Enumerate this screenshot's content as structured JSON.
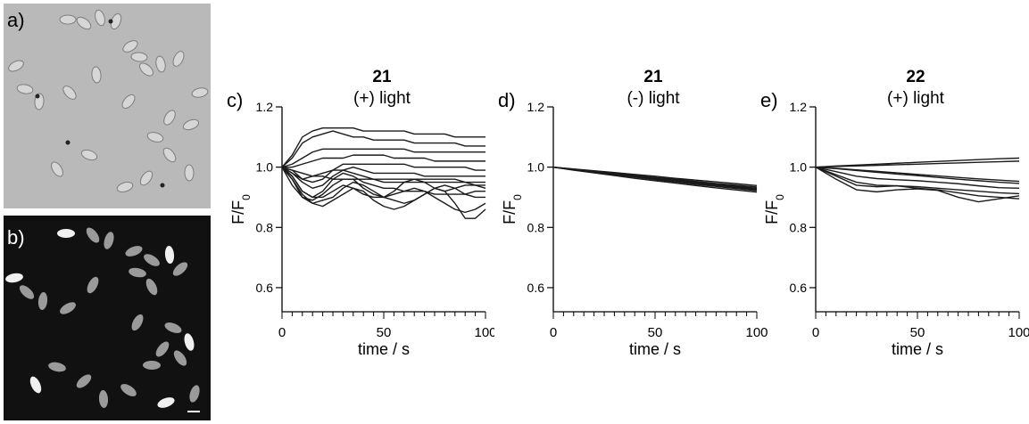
{
  "panel_labels": [
    "a)",
    "b)",
    "c)",
    "d)",
    "e)"
  ],
  "chart_data": [
    {
      "type": "line",
      "panel": "c)",
      "title": "21",
      "subtitle": "(+) light",
      "xlabel": "time / s",
      "ylabel": "F/F0",
      "ylabel_main": "F/F",
      "ylabel_sub": "0",
      "xlim": [
        0,
        100
      ],
      "ylim": [
        0.52,
        1.2
      ],
      "yticks": [
        0.6,
        0.8,
        1.0,
        1.2
      ],
      "ytick_labels": [
        "0.6",
        "0.8",
        "1.0",
        "1.2"
      ],
      "xticks": [
        0,
        50,
        100
      ],
      "xtick_labels": [
        "0",
        "50",
        "100"
      ],
      "x": [
        0,
        5,
        10,
        15,
        20,
        25,
        30,
        35,
        40,
        45,
        50,
        55,
        60,
        65,
        70,
        75,
        80,
        85,
        90,
        95,
        100
      ],
      "series": [
        {
          "values": [
            1.0,
            1.04,
            1.1,
            1.12,
            1.13,
            1.13,
            1.13,
            1.13,
            1.12,
            1.12,
            1.12,
            1.12,
            1.12,
            1.11,
            1.11,
            1.11,
            1.11,
            1.1,
            1.1,
            1.1,
            1.1
          ]
        },
        {
          "values": [
            1.0,
            1.03,
            1.08,
            1.1,
            1.11,
            1.12,
            1.11,
            1.1,
            1.1,
            1.09,
            1.09,
            1.09,
            1.09,
            1.08,
            1.08,
            1.08,
            1.08,
            1.08,
            1.07,
            1.07,
            1.07
          ]
        },
        {
          "values": [
            1.0,
            1.01,
            1.03,
            1.05,
            1.06,
            1.06,
            1.06,
            1.06,
            1.06,
            1.06,
            1.06,
            1.06,
            1.06,
            1.05,
            1.05,
            1.05,
            1.05,
            1.05,
            1.05,
            1.05,
            1.05
          ]
        },
        {
          "values": [
            1.0,
            1.0,
            1.01,
            1.02,
            1.03,
            1.03,
            1.03,
            1.04,
            1.04,
            1.04,
            1.04,
            1.03,
            1.03,
            1.03,
            1.03,
            1.02,
            1.02,
            1.02,
            1.02,
            1.02,
            1.02
          ]
        },
        {
          "values": [
            1.0,
            0.99,
            0.96,
            0.95,
            0.96,
            0.99,
            1.01,
            1.01,
            1.01,
            1.01,
            1.01,
            1.01,
            1.01,
            1.0,
            1.0,
            1.0,
            1.0,
            1.0,
            1.0,
            0.99,
            0.99
          ]
        },
        {
          "values": [
            1.0,
            0.98,
            0.95,
            0.93,
            0.94,
            0.97,
            0.99,
            1.0,
            0.99,
            0.98,
            0.98,
            0.98,
            0.98,
            0.98,
            0.97,
            0.97,
            0.97,
            0.97,
            0.97,
            0.97,
            0.97
          ]
        },
        {
          "values": [
            1.0,
            0.98,
            0.96,
            0.97,
            0.98,
            0.99,
            0.99,
            0.98,
            0.97,
            0.96,
            0.96,
            0.96,
            0.96,
            0.96,
            0.96,
            0.96,
            0.96,
            0.96,
            0.95,
            0.95,
            0.95
          ]
        },
        {
          "values": [
            1.0,
            0.99,
            0.98,
            0.97,
            0.97,
            0.96,
            0.96,
            0.96,
            0.96,
            0.96,
            0.95,
            0.95,
            0.95,
            0.95,
            0.95,
            0.95,
            0.95,
            0.95,
            0.95,
            0.94,
            0.94
          ]
        },
        {
          "values": [
            1.0,
            0.97,
            0.92,
            0.9,
            0.92,
            0.96,
            0.98,
            0.97,
            0.95,
            0.94,
            0.93,
            0.93,
            0.92,
            0.92,
            0.92,
            0.91,
            0.91,
            0.91,
            0.91,
            0.92,
            0.92
          ]
        },
        {
          "values": [
            1.0,
            0.96,
            0.9,
            0.89,
            0.91,
            0.94,
            0.96,
            0.96,
            0.93,
            0.91,
            0.9,
            0.92,
            0.95,
            0.96,
            0.95,
            0.93,
            0.92,
            0.93,
            0.94,
            0.94,
            0.93
          ]
        },
        {
          "values": [
            1.0,
            0.94,
            0.9,
            0.88,
            0.89,
            0.9,
            0.93,
            0.95,
            0.94,
            0.92,
            0.9,
            0.89,
            0.88,
            0.89,
            0.91,
            0.93,
            0.94,
            0.93,
            0.91,
            0.9,
            0.9
          ]
        },
        {
          "values": [
            1.0,
            0.96,
            0.91,
            0.88,
            0.87,
            0.89,
            0.91,
            0.93,
            0.92,
            0.89,
            0.87,
            0.86,
            0.87,
            0.89,
            0.91,
            0.93,
            0.92,
            0.88,
            0.83,
            0.83,
            0.86
          ]
        },
        {
          "values": [
            1.0,
            0.97,
            0.92,
            0.9,
            0.9,
            0.92,
            0.94,
            0.93,
            0.91,
            0.9,
            0.9,
            0.91,
            0.92,
            0.93,
            0.92,
            0.9,
            0.88,
            0.86,
            0.85,
            0.86,
            0.88
          ]
        }
      ]
    },
    {
      "type": "line",
      "panel": "d)",
      "title": "21",
      "subtitle": "(-) light",
      "xlabel": "time / s",
      "ylabel": "F/F0",
      "ylabel_main": "F/F",
      "ylabel_sub": "0",
      "xlim": [
        0,
        100
      ],
      "ylim": [
        0.52,
        1.2
      ],
      "yticks": [
        0.6,
        0.8,
        1.0,
        1.2
      ],
      "ytick_labels": [
        "0.6",
        "0.8",
        "1.0",
        "1.2"
      ],
      "xticks": [
        0,
        50,
        100
      ],
      "xtick_labels": [
        "0",
        "50",
        "100"
      ],
      "x": [
        0,
        10,
        20,
        30,
        40,
        50,
        60,
        70,
        80,
        90,
        100
      ],
      "series": [
        {
          "values": [
            1.0,
            0.993,
            0.987,
            0.98,
            0.973,
            0.966,
            0.96,
            0.953,
            0.946,
            0.94,
            0.934
          ]
        },
        {
          "values": [
            1.0,
            0.992,
            0.985,
            0.977,
            0.97,
            0.962,
            0.955,
            0.948,
            0.941,
            0.934,
            0.928
          ]
        },
        {
          "values": [
            1.0,
            0.991,
            0.983,
            0.975,
            0.967,
            0.959,
            0.951,
            0.943,
            0.936,
            0.929,
            0.922
          ]
        },
        {
          "values": [
            1.0,
            0.994,
            0.988,
            0.982,
            0.976,
            0.97,
            0.963,
            0.957,
            0.951,
            0.945,
            0.939
          ]
        },
        {
          "values": [
            1.0,
            0.99,
            0.981,
            0.972,
            0.963,
            0.955,
            0.947,
            0.939,
            0.931,
            0.924,
            0.917
          ]
        },
        {
          "values": [
            1.0,
            0.992,
            0.984,
            0.976,
            0.969,
            0.961,
            0.954,
            0.946,
            0.939,
            0.932,
            0.925
          ]
        },
        {
          "values": [
            1.0,
            0.993,
            0.986,
            0.979,
            0.971,
            0.964,
            0.957,
            0.95,
            0.943,
            0.937,
            0.93
          ]
        }
      ]
    },
    {
      "type": "line",
      "panel": "e)",
      "title": "22",
      "subtitle": "(+) light",
      "xlabel": "time / s",
      "ylabel": "F/F0",
      "ylabel_main": "F/F",
      "ylabel_sub": "0",
      "xlim": [
        0,
        100
      ],
      "ylim": [
        0.52,
        1.2
      ],
      "yticks": [
        0.6,
        0.8,
        1.0,
        1.2
      ],
      "ytick_labels": [
        "0.6",
        "0.8",
        "1.0",
        "1.2"
      ],
      "xticks": [
        0,
        50,
        100
      ],
      "xtick_labels": [
        "0",
        "50",
        "100"
      ],
      "x": [
        0,
        10,
        20,
        30,
        40,
        50,
        60,
        70,
        80,
        90,
        100
      ],
      "series": [
        {
          "values": [
            1.0,
            1.004,
            1.007,
            1.01,
            1.013,
            1.016,
            1.019,
            1.022,
            1.025,
            1.028,
            1.03
          ]
        },
        {
          "values": [
            1.0,
            1.002,
            1.004,
            1.006,
            1.008,
            1.01,
            1.012,
            1.014,
            1.016,
            1.018,
            1.02
          ]
        },
        {
          "values": [
            1.0,
            0.996,
            0.991,
            0.986,
            0.981,
            0.976,
            0.971,
            0.966,
            0.961,
            0.957,
            0.953
          ]
        },
        {
          "values": [
            1.0,
            0.995,
            0.989,
            0.983,
            0.977,
            0.972,
            0.966,
            0.96,
            0.955,
            0.95,
            0.946
          ]
        },
        {
          "values": [
            1.0,
            0.985,
            0.97,
            0.962,
            0.958,
            0.955,
            0.95,
            0.945,
            0.938,
            0.932,
            0.93
          ]
        },
        {
          "values": [
            1.0,
            0.975,
            0.95,
            0.94,
            0.938,
            0.935,
            0.93,
            0.925,
            0.92,
            0.915,
            0.912
          ]
        },
        {
          "values": [
            1.0,
            0.97,
            0.94,
            0.935,
            0.938,
            0.93,
            0.925,
            0.915,
            0.905,
            0.9,
            0.895
          ]
        },
        {
          "values": [
            1.0,
            0.96,
            0.925,
            0.918,
            0.925,
            0.928,
            0.923,
            0.9,
            0.885,
            0.895,
            0.905
          ]
        }
      ]
    }
  ]
}
